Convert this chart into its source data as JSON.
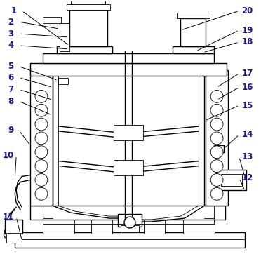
{
  "background_color": "#ffffff",
  "line_color": "#000000",
  "lw": 1.0,
  "tlw": 0.6,
  "figure_size": [
    3.72,
    3.72
  ],
  "dpi": 100,
  "label_color": "#1a1a8c",
  "label_fontsize": 8.5
}
